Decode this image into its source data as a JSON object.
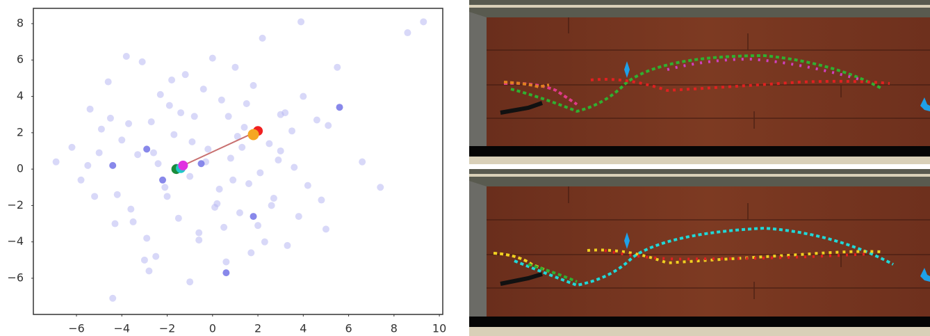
{
  "chart_data": {
    "type": "scatter",
    "xlim": [
      -7.9,
      10.15
    ],
    "ylim": [
      -7.99,
      8.84
    ],
    "xticks": [
      {
        "value": -6,
        "label": "−6"
      },
      {
        "value": -4,
        "label": "−4"
      },
      {
        "value": -2,
        "label": "−2"
      },
      0,
      2,
      4,
      6,
      8,
      10
    ],
    "yticks": [
      {
        "value": -6,
        "label": "−6"
      },
      {
        "value": -4,
        "label": "−4"
      },
      {
        "value": -2,
        "label": "−2"
      },
      0,
      2,
      4,
      6,
      8
    ],
    "grid": false,
    "series": [
      {
        "color": "#b8b8f2",
        "opacity": 0.55,
        "size": 5,
        "x": [
          -6.9,
          -6.2,
          -5.8,
          -5.4,
          -5.2,
          -4.9,
          -4.6,
          -4.3,
          -4.0,
          -3.8,
          -3.6,
          -3.3,
          -3.1,
          -2.9,
          -2.7,
          -2.5,
          -2.3,
          -2.1,
          -1.9,
          -1.7,
          -1.5,
          -1.2,
          -1.0,
          -0.8,
          -0.6,
          -0.4,
          -0.2,
          0.0,
          0.2,
          0.4,
          0.6,
          0.8,
          1.0,
          1.2,
          1.4,
          1.6,
          1.8,
          2.0,
          2.2,
          2.5,
          2.7,
          3.0,
          3.3,
          3.6,
          3.9,
          4.2,
          4.6,
          5.0,
          5.5,
          6.6,
          7.4,
          8.6,
          9.3,
          4.0,
          2.3,
          -3.0,
          -4.5,
          -1.0,
          0.5,
          1.5,
          -2.0,
          3.0,
          -5.5,
          -3.5,
          -2.6,
          -0.9,
          0.9,
          2.6,
          3.5,
          -4.2,
          -1.4,
          0.1,
          1.1,
          2.9,
          4.8,
          -2.8,
          -0.3,
          1.7,
          -3.7,
          -1.8,
          0.7,
          2.1,
          3.8,
          -5.0,
          -0.6,
          1.3,
          3.2,
          -2.4,
          0.3,
          5.1,
          -4.4
        ],
        "y": [
          0.4,
          1.2,
          -0.6,
          3.3,
          -1.5,
          2.2,
          4.8,
          -3.0,
          1.6,
          6.2,
          -2.2,
          0.8,
          5.9,
          -3.8,
          2.6,
          -4.8,
          4.1,
          -1.0,
          3.5,
          1.9,
          -2.7,
          5.2,
          -0.4,
          2.9,
          -3.5,
          4.4,
          1.1,
          6.1,
          -1.9,
          3.8,
          -5.1,
          0.6,
          5.6,
          -2.4,
          2.3,
          -0.8,
          4.6,
          -3.1,
          7.2,
          1.4,
          -1.6,
          3.0,
          -4.2,
          0.1,
          8.1,
          -0.9,
          2.7,
          -3.3,
          5.6,
          0.4,
          -1.0,
          7.5,
          8.1,
          4.0,
          -4.0,
          -5.0,
          2.8,
          -6.2,
          -3.2,
          3.6,
          -1.5,
          1.0,
          0.2,
          -2.9,
          0.9,
          1.5,
          -0.6,
          -2.0,
          2.1,
          -1.4,
          3.1,
          -2.1,
          1.8,
          0.5,
          -1.7,
          -5.6,
          0.4,
          -4.6,
          2.5,
          4.9,
          2.9,
          -0.2,
          -2.6,
          0.9,
          -3.9,
          1.2,
          3.1,
          0.3,
          -1.1,
          2.4,
          -7.1
        ]
      },
      {
        "color": "#7b7be8",
        "opacity": 0.9,
        "size": 5,
        "x": [
          -4.4,
          -2.9,
          -2.2,
          -0.5,
          5.6,
          1.8,
          0.6,
          -1.6
        ],
        "y": [
          0.2,
          1.1,
          -0.6,
          0.3,
          3.4,
          -2.6,
          -5.7,
          0.1
        ]
      },
      {
        "color": "#c87070",
        "line": true,
        "x": [
          -1.3,
          2.0
        ],
        "y": [
          0.2,
          2.1
        ]
      },
      {
        "color": "#1a8c3a",
        "size": 7,
        "x": [
          -1.6
        ],
        "y": [
          0.0
        ]
      },
      {
        "color": "#20c8c8",
        "size": 7,
        "x": [
          -1.4
        ],
        "y": [
          0.05
        ]
      },
      {
        "color": "#e030e0",
        "size": 7,
        "x": [
          -1.3
        ],
        "y": [
          0.2
        ]
      },
      {
        "color": "#f02020",
        "size": 7,
        "x": [
          2.0
        ],
        "y": [
          2.1
        ]
      },
      {
        "color": "#f5a623",
        "size": 8,
        "x": [
          1.8
        ],
        "y": [
          1.9
        ]
      }
    ]
  }
}
